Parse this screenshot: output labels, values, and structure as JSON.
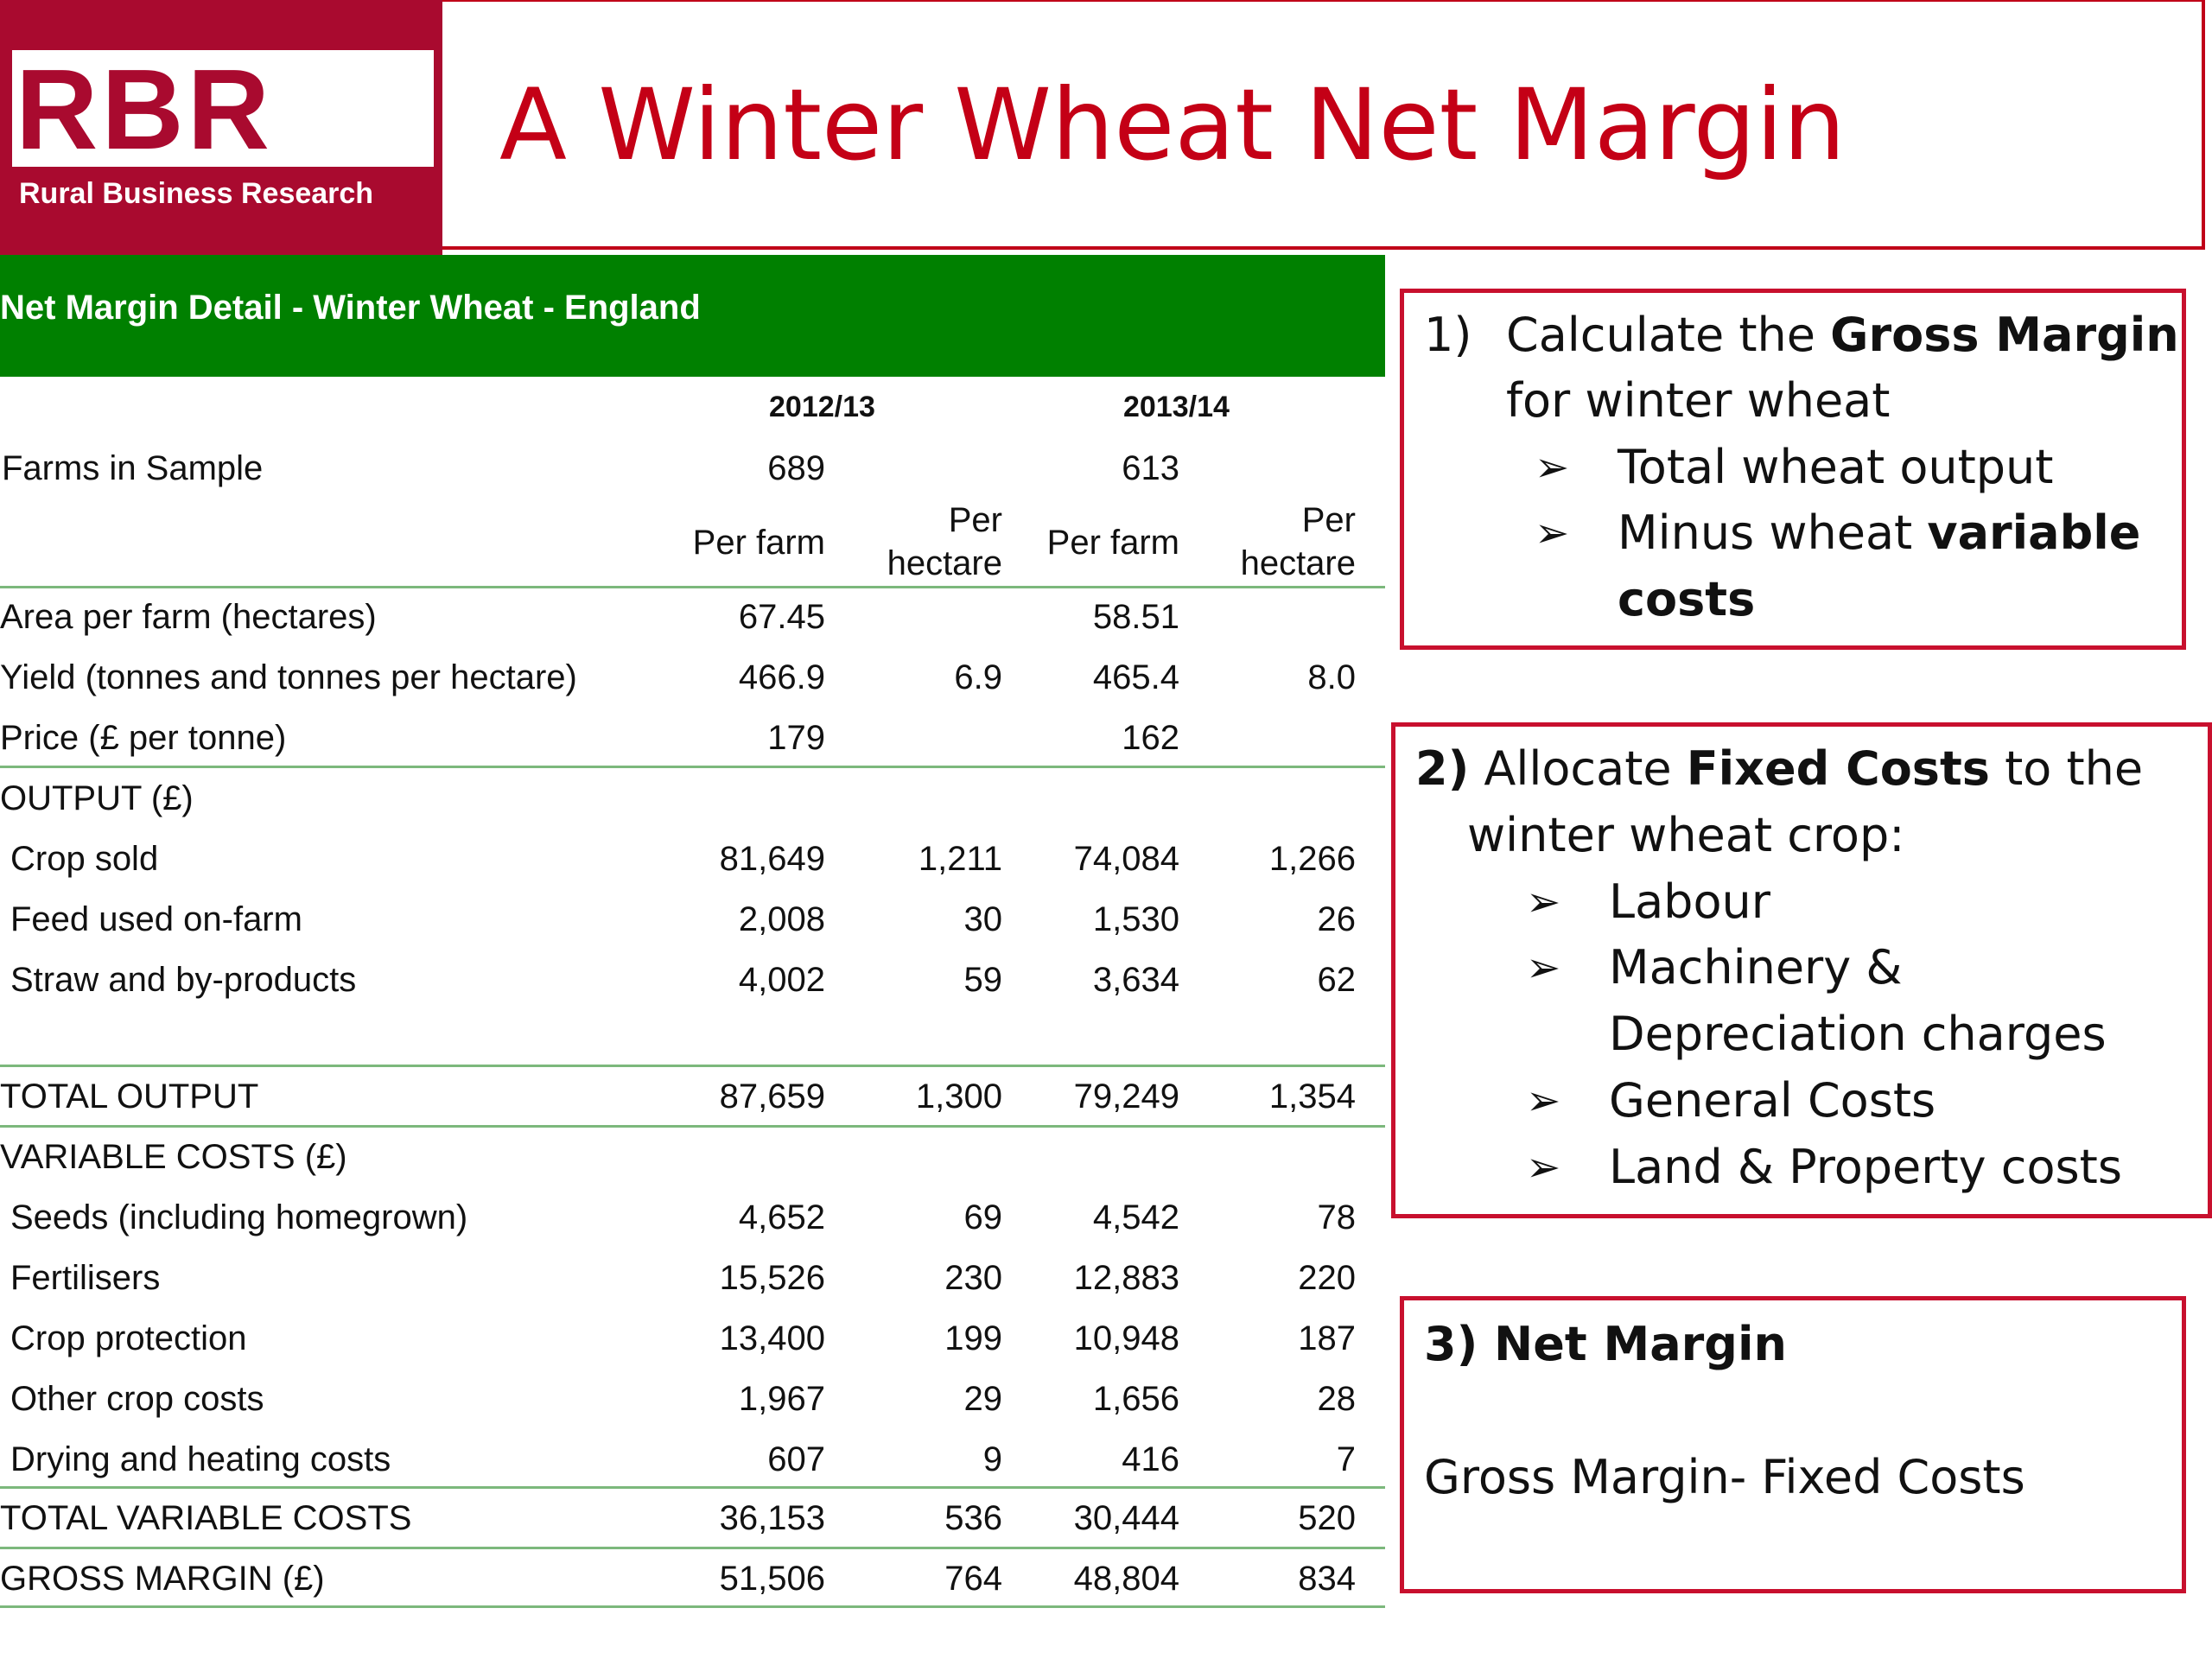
{
  "header": {
    "logo_mark": "RBR",
    "logo_subtitle": "Rural Business Research",
    "title": "A Winter Wheat Net Margin",
    "brand_color": "#a90a2f"
  },
  "table": {
    "heading": "Net Margin Detail - Winter Wheat - England",
    "years": [
      "2012/13",
      "2013/14"
    ],
    "farms_label": "Farms in Sample",
    "farms": [
      "689",
      "613"
    ],
    "col_per_farm": "Per farm",
    "col_per_hectare_1": "Per",
    "col_per_hectare_2": "hectare",
    "rows": [
      {
        "label": "Area per farm (hectares)",
        "v": [
          "67.45",
          "",
          "58.51",
          ""
        ]
      },
      {
        "label": "Yield (tonnes and tonnes per hectare)",
        "v": [
          "466.9",
          "6.9",
          "465.4",
          "8.0"
        ]
      },
      {
        "label": "Price (£ per tonne)",
        "v": [
          "179",
          "",
          "162",
          ""
        ]
      },
      {
        "label": "OUTPUT (£)",
        "v": [
          "",
          "",
          "",
          ""
        ]
      },
      {
        "label": "Crop sold",
        "v": [
          "81,649",
          "1,211",
          "74,084",
          "1,266"
        ]
      },
      {
        "label": "Feed used on-farm",
        "v": [
          "2,008",
          "30",
          "1,530",
          "26"
        ]
      },
      {
        "label": "Straw and by-products",
        "v": [
          "4,002",
          "59",
          "3,634",
          "62"
        ]
      },
      {
        "label": "TOTAL OUTPUT",
        "v": [
          "87,659",
          "1,300",
          "79,249",
          "1,354"
        ]
      },
      {
        "label": "VARIABLE COSTS (£)",
        "v": [
          "",
          "",
          "",
          ""
        ]
      },
      {
        "label": "Seeds (including homegrown)",
        "v": [
          "4,652",
          "69",
          "4,542",
          "78"
        ]
      },
      {
        "label": "Fertilisers",
        "v": [
          "15,526",
          "230",
          "12,883",
          "220"
        ]
      },
      {
        "label": "Crop protection",
        "v": [
          "13,400",
          "199",
          "10,948",
          "187"
        ]
      },
      {
        "label": "Other crop costs",
        "v": [
          "1,967",
          "29",
          "1,656",
          "28"
        ]
      },
      {
        "label": "Drying and heating costs",
        "v": [
          "607",
          "9",
          "416",
          "7"
        ]
      },
      {
        "label": "TOTAL VARIABLE COSTS",
        "v": [
          "36,153",
          "536",
          "30,444",
          "520"
        ]
      },
      {
        "label": "GROSS MARGIN (£)",
        "v": [
          "51,506",
          "764",
          "48,804",
          "834"
        ]
      }
    ]
  },
  "box1": {
    "num": "1)",
    "line1_pre": "Calculate the ",
    "line1_bold": "Gross Margin",
    "line2": "for winter wheat",
    "bullet1": "Total wheat output",
    "bullet2_pre": "Minus wheat ",
    "bullet2_bold": "variable",
    "bullet2_cont": "costs"
  },
  "box2": {
    "num": "2)",
    "line1_pre": " Allocate ",
    "line1_bold": "Fixed Costs",
    "line1_post": " to the",
    "line2": "winter wheat crop:",
    "bullets": [
      "Labour",
      "Machinery &",
      "Depreciation charges",
      "General Costs",
      "Land & Property costs"
    ]
  },
  "box3": {
    "title": "3) Net Margin",
    "body": "Gross Margin- Fixed Costs"
  },
  "arrow_glyph": "➢"
}
